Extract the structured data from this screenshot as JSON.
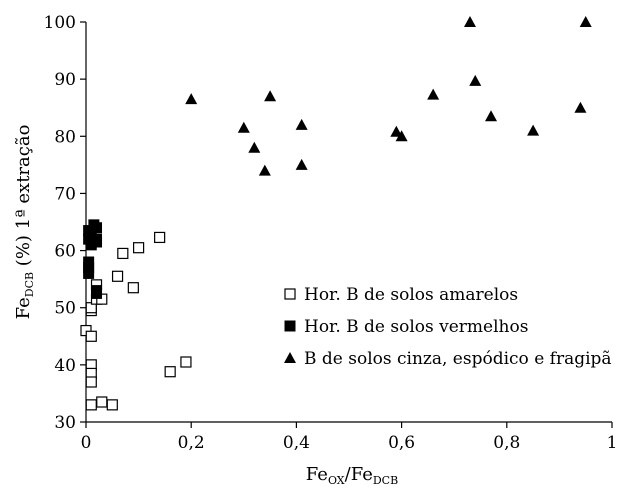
{
  "chart_data": {
    "type": "scatter",
    "xlabel": {
      "main": "Fe",
      "sub1": "OX",
      "mid": "/Fe",
      "sub2": "DCB"
    },
    "ylabel": {
      "main": "Fe",
      "sub": "DCB",
      "rest": " (%) 1ª extração"
    },
    "xlim": [
      0,
      1
    ],
    "ylim": [
      30,
      100
    ],
    "xticks": [
      0,
      0.2,
      0.4,
      0.6,
      0.8,
      1
    ],
    "xtick_labels": [
      "0",
      "0,2",
      "0,4",
      "0,6",
      "0,8",
      "1"
    ],
    "yticks": [
      30,
      40,
      50,
      60,
      70,
      80,
      90,
      100
    ],
    "ytick_labels": [
      "30",
      "40",
      "50",
      "60",
      "70",
      "80",
      "90",
      "100"
    ],
    "grid": false,
    "legend_position": "center-right",
    "series": [
      {
        "name": "Hor. B de solos amarelos",
        "marker": "open-square",
        "color": "#000000",
        "points": [
          [
            0.0,
            46
          ],
          [
            0.01,
            45
          ],
          [
            0.01,
            40
          ],
          [
            0.01,
            38.5
          ],
          [
            0.01,
            37
          ],
          [
            0.01,
            33
          ],
          [
            0.01,
            49.5
          ],
          [
            0.01,
            50
          ],
          [
            0.02,
            54
          ],
          [
            0.02,
            51.5
          ],
          [
            0.03,
            33.5
          ],
          [
            0.03,
            51.5
          ],
          [
            0.05,
            33
          ],
          [
            0.06,
            55.5
          ],
          [
            0.07,
            59.5
          ],
          [
            0.09,
            53.5
          ],
          [
            0.1,
            60.5
          ],
          [
            0.14,
            62.3
          ],
          [
            0.16,
            38.8
          ],
          [
            0.19,
            40.5
          ]
        ]
      },
      {
        "name": "Hor. B de solos vermelhos",
        "marker": "filled-square",
        "color": "#000000",
        "points": [
          [
            0.005,
            63.5
          ],
          [
            0.005,
            62
          ],
          [
            0.005,
            58
          ],
          [
            0.005,
            57
          ],
          [
            0.005,
            56
          ],
          [
            0.01,
            63
          ],
          [
            0.01,
            61
          ],
          [
            0.015,
            64.5
          ],
          [
            0.02,
            64
          ],
          [
            0.02,
            62
          ],
          [
            0.02,
            61.5
          ],
          [
            0.02,
            52.5
          ],
          [
            0.02,
            53
          ]
        ]
      },
      {
        "name": "B de solos cinza, espódico e fragipã",
        "marker": "filled-triangle",
        "color": "#000000",
        "points": [
          [
            0.2,
            86.5
          ],
          [
            0.3,
            81.5
          ],
          [
            0.32,
            78
          ],
          [
            0.34,
            74
          ],
          [
            0.35,
            87
          ],
          [
            0.41,
            82
          ],
          [
            0.41,
            75
          ],
          [
            0.59,
            80.8
          ],
          [
            0.6,
            80
          ],
          [
            0.66,
            87.3
          ],
          [
            0.73,
            100
          ],
          [
            0.74,
            89.7
          ],
          [
            0.77,
            83.5
          ],
          [
            0.85,
            81
          ],
          [
            0.94,
            85
          ],
          [
            0.95,
            100
          ]
        ]
      }
    ]
  }
}
